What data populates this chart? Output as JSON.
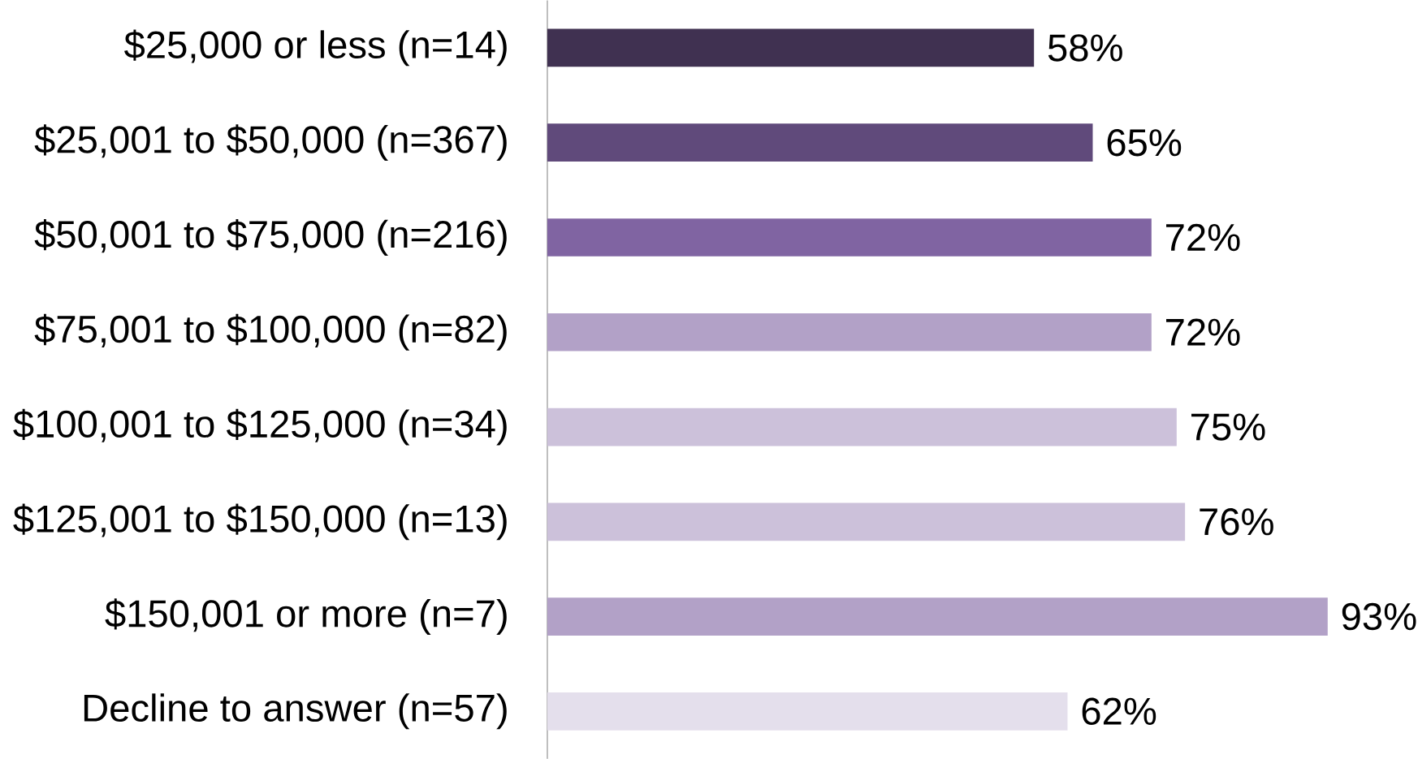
{
  "chart_data": {
    "type": "bar",
    "orientation": "horizontal",
    "categories": [
      "$25,000 or less (n=14)",
      "$25,001 to $50,000 (n=367)",
      "$50,001 to $75,000 (n=216)",
      "$75,001 to $100,000 (n=82)",
      "$100,001 to $125,000 (n=34)",
      "$125,001 to $150,000 (n=13)",
      "$150,001 or more (n=7)",
      "Decline to answer (n=57)"
    ],
    "values": [
      58,
      65,
      72,
      72,
      75,
      76,
      93,
      62
    ],
    "value_labels": [
      "58%",
      "65%",
      "72%",
      "72%",
      "75%",
      "76%",
      "93%",
      "62%"
    ],
    "colors": [
      "#403151",
      "#604a7b",
      "#8064a2",
      "#b2a1c7",
      "#ccc1da",
      "#ccc1da",
      "#b2a1c7",
      "#e4dfec"
    ]
  }
}
